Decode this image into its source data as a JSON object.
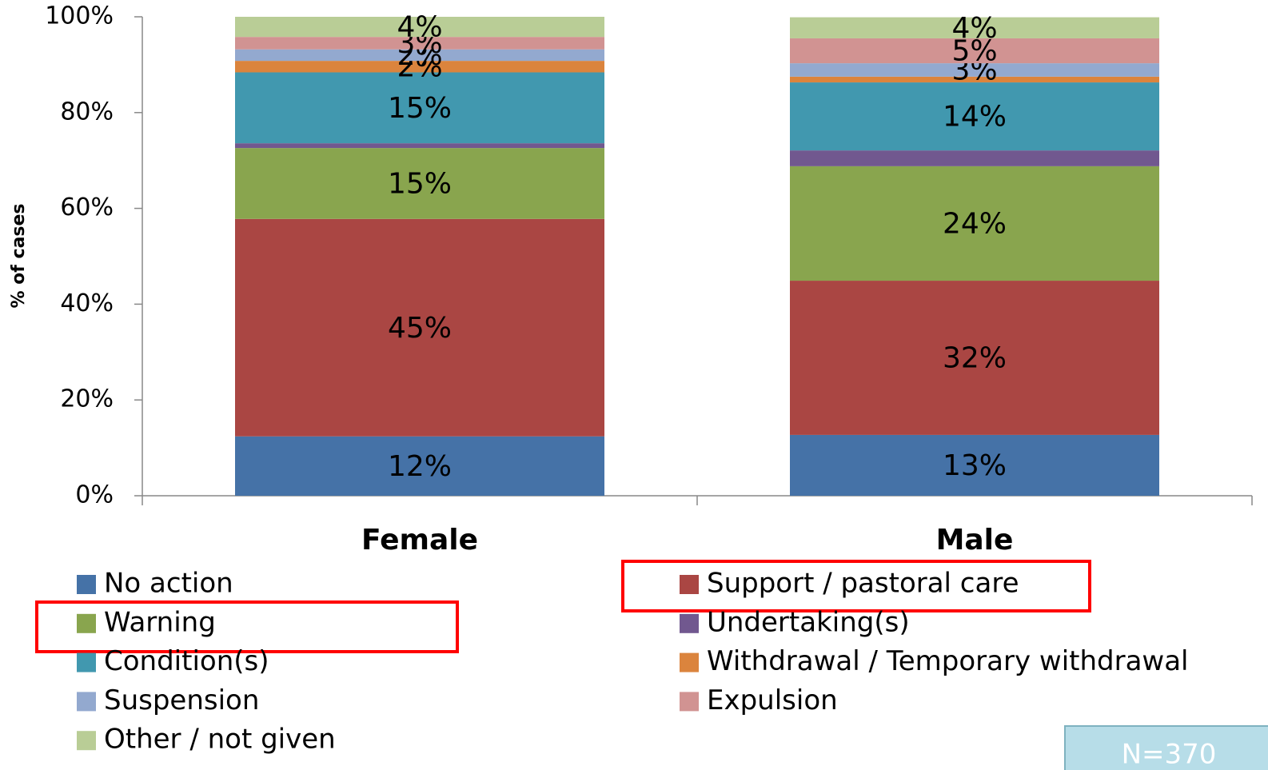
{
  "chart_data": {
    "type": "stacked_bar",
    "ylabel": "% of cases",
    "categories": [
      "Female",
      "Male"
    ],
    "series": [
      {
        "name": "No action",
        "color": "#4572a7",
        "values": [
          12.4,
          12.7
        ],
        "value_labels": [
          "12%",
          "13%"
        ]
      },
      {
        "name": "Support / pastoral care",
        "color": "#aa4643",
        "values": [
          45.4,
          32.2
        ],
        "value_labels": [
          "45%",
          "32%"
        ]
      },
      {
        "name": "Warning",
        "color": "#89a54e",
        "values": [
          14.8,
          23.9
        ],
        "value_labels": [
          "15%",
          "24%"
        ]
      },
      {
        "name": "Undertaking(s)",
        "color": "#71588f",
        "values": [
          1.0,
          3.3
        ],
        "value_labels": [
          null,
          null
        ]
      },
      {
        "name": "Condition(s)",
        "color": "#4198af",
        "values": [
          14.8,
          14.2
        ],
        "value_labels": [
          "15%",
          "14%"
        ]
      },
      {
        "name": "Withdrawal / Temporary withdrawal",
        "color": "#db843d",
        "values": [
          2.4,
          1.2
        ],
        "value_labels": [
          "2%",
          null
        ]
      },
      {
        "name": "Suspension",
        "color": "#93a9cf",
        "values": [
          2.4,
          2.8
        ],
        "value_labels": [
          "2%",
          "3%"
        ]
      },
      {
        "name": "Expulsion",
        "color": "#d19392",
        "values": [
          2.6,
          5.2
        ],
        "value_labels": [
          "3%",
          "5%"
        ]
      },
      {
        "name": "Other / not given",
        "color": "#b9cd96",
        "values": [
          4.2,
          4.4
        ],
        "value_labels": [
          "4%",
          "4%"
        ]
      }
    ],
    "ylim": [
      0,
      100
    ],
    "yticks": [
      {
        "value": 0,
        "label": "0%"
      },
      {
        "value": 20,
        "label": "20%"
      },
      {
        "value": 40,
        "label": "40%"
      },
      {
        "value": 60,
        "label": "60%"
      },
      {
        "value": 80,
        "label": "80%"
      },
      {
        "value": 100,
        "label": "100%"
      }
    ],
    "annotation": "N=370"
  }
}
